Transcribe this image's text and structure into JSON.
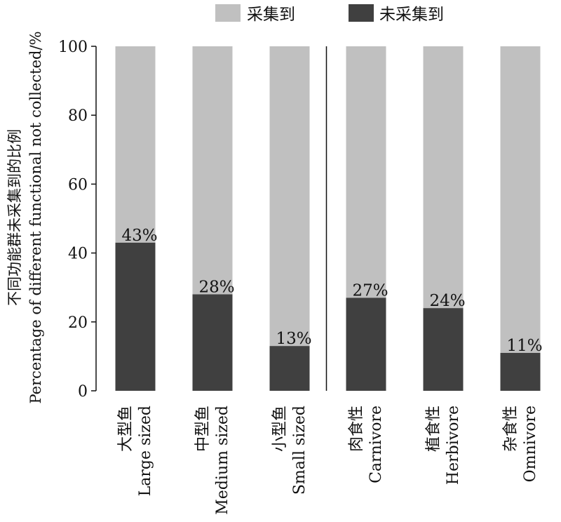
{
  "chart_data": {
    "type": "bar",
    "stacked": true,
    "ylabel_cn": "不同功能群未采集到的比例",
    "ylabel_en": "Percentage of different functional not collected/%",
    "ylim": [
      0,
      100
    ],
    "yticks": [
      0,
      20,
      40,
      60,
      80,
      100
    ],
    "legend_placement": "top",
    "categories": [
      {
        "cn": "大型鱼",
        "en": "Large sized"
      },
      {
        "cn": "中型鱼",
        "en": "Medium sized"
      },
      {
        "cn": "小型鱼",
        "en": "Small sized"
      },
      {
        "cn": "肉食性",
        "en": "Carnivore"
      },
      {
        "cn": "植食性",
        "en": "Herbivore"
      },
      {
        "cn": "杂食性",
        "en": "Omnivore"
      }
    ],
    "series": [
      {
        "name": "采集到",
        "color": "#c0c0c0",
        "values": [
          57,
          72,
          87,
          73,
          76,
          89
        ]
      },
      {
        "name": "未采集到",
        "color": "#404040",
        "values": [
          43,
          28,
          13,
          27,
          24,
          11
        ]
      }
    ],
    "data_labels": [
      "43%",
      "28%",
      "13%",
      "27%",
      "24%",
      "11%"
    ],
    "group_divider_after_index": 2
  }
}
